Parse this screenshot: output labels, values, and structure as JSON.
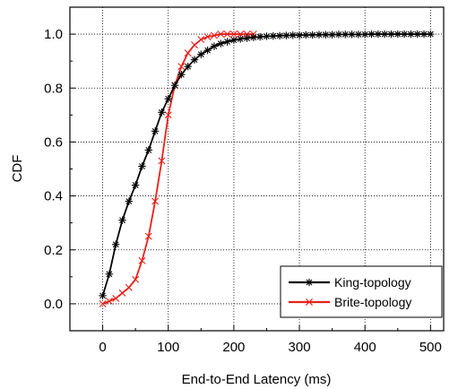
{
  "chart_data": {
    "type": "line",
    "title": "",
    "xlabel": "End-to-End Latency (ms)",
    "ylabel": "CDF",
    "xlim": [
      -50,
      520
    ],
    "ylim": [
      -0.1,
      1.1
    ],
    "xticks": [
      0,
      100,
      200,
      300,
      400,
      500
    ],
    "yticks": [
      0.0,
      0.2,
      0.4,
      0.6,
      0.8,
      1.0
    ],
    "xtick_labels": [
      "0",
      "100",
      "200",
      "300",
      "400",
      "500"
    ],
    "ytick_labels": [
      "0.0",
      "0.2",
      "0.4",
      "0.6",
      "0.8",
      "1.0"
    ],
    "grid": true,
    "grid_style": "dotted",
    "legend_position": "bottom-right",
    "series": [
      {
        "name": "King-topology",
        "color": "#000000",
        "marker": "asterisk",
        "x": [
          0,
          10,
          20,
          30,
          40,
          50,
          60,
          70,
          80,
          90,
          100,
          110,
          120,
          130,
          140,
          150,
          160,
          170,
          180,
          190,
          200,
          210,
          220,
          230,
          240,
          250,
          260,
          270,
          280,
          290,
          300,
          310,
          320,
          330,
          340,
          350,
          360,
          370,
          380,
          390,
          400,
          410,
          420,
          430,
          440,
          450,
          460,
          470,
          480,
          490,
          500
        ],
        "y": [
          0.03,
          0.11,
          0.22,
          0.31,
          0.38,
          0.44,
          0.51,
          0.57,
          0.64,
          0.71,
          0.76,
          0.81,
          0.85,
          0.88,
          0.905,
          0.925,
          0.94,
          0.955,
          0.965,
          0.972,
          0.978,
          0.982,
          0.985,
          0.988,
          0.99,
          0.992,
          0.993,
          0.994,
          0.995,
          0.996,
          0.996,
          0.997,
          0.997,
          0.998,
          0.998,
          0.998,
          0.999,
          0.999,
          0.999,
          0.999,
          0.999,
          1.0,
          1.0,
          1.0,
          1.0,
          1.0,
          1.0,
          1.0,
          1.0,
          1.0,
          1.0
        ]
      },
      {
        "name": "Brite-topology",
        "color": "#e8201a",
        "marker": "x",
        "x": [
          0,
          10,
          20,
          30,
          40,
          50,
          60,
          70,
          80,
          90,
          100,
          110,
          120,
          130,
          140,
          150,
          160,
          170,
          180,
          190,
          200,
          210,
          220,
          230
        ],
        "y": [
          0.0,
          0.01,
          0.02,
          0.04,
          0.06,
          0.09,
          0.16,
          0.25,
          0.38,
          0.53,
          0.7,
          0.81,
          0.88,
          0.93,
          0.96,
          0.98,
          0.99,
          0.995,
          1.0,
          1.0,
          1.0,
          1.0,
          1.0,
          1.0
        ]
      }
    ]
  }
}
